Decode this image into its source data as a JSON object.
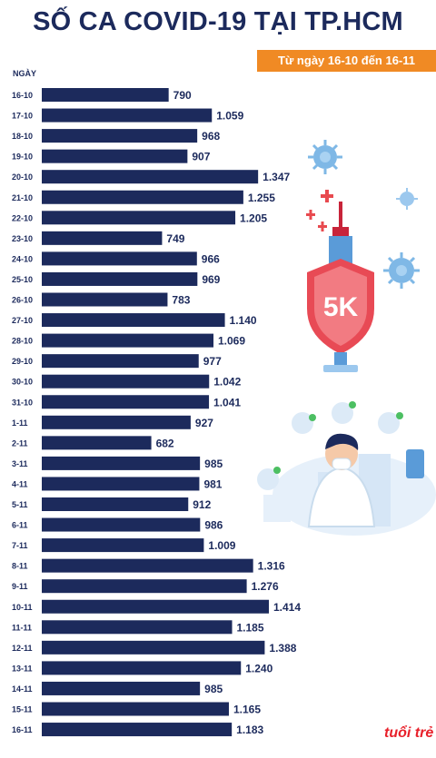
{
  "title": "SỐ CA COVID-19 TẠI TP.HCM",
  "subtitle": "Từ ngày 16-10 đến 16-11",
  "logo_text": "tuổi trẻ",
  "chart_data": {
    "type": "bar",
    "orientation": "horizontal",
    "title": "SỐ CA COVID-19 TẠI TP.HCM",
    "subtitle": "Từ ngày 16-10 đến 16-11",
    "ylabel": "NGÀY",
    "xlabel": "",
    "categories": [
      "16-10",
      "17-10",
      "18-10",
      "19-10",
      "20-10",
      "21-10",
      "22-10",
      "23-10",
      "24-10",
      "25-10",
      "26-10",
      "27-10",
      "28-10",
      "29-10",
      "30-10",
      "31-10",
      "1-11",
      "2-11",
      "3-11",
      "4-11",
      "5-11",
      "6-11",
      "7-11",
      "8-11",
      "9-11",
      "10-11",
      "11-11",
      "12-11",
      "13-11",
      "14-11",
      "15-11",
      "16-11"
    ],
    "values": [
      790,
      1059,
      968,
      907,
      1347,
      1255,
      1205,
      749,
      966,
      969,
      783,
      1140,
      1069,
      977,
      1042,
      1041,
      927,
      682,
      985,
      981,
      912,
      986,
      1009,
      1316,
      1276,
      1414,
      1185,
      1388,
      1240,
      985,
      1165,
      1183
    ],
    "labels": [
      "790",
      "1.059",
      "968",
      "907",
      "1.347",
      "1.255",
      "1.205",
      "749",
      "966",
      "969",
      "783",
      "1.140",
      "1.069",
      "977",
      "1.042",
      "1.041",
      "927",
      "682",
      "985",
      "981",
      "912",
      "986",
      "1.009",
      "1.316",
      "1.276",
      "1.414",
      "1.185",
      "1.388",
      "1.240",
      "985",
      "1.165",
      "1.183"
    ],
    "bar_color": "#1c2a5c",
    "accent_color": "#f08a24"
  }
}
